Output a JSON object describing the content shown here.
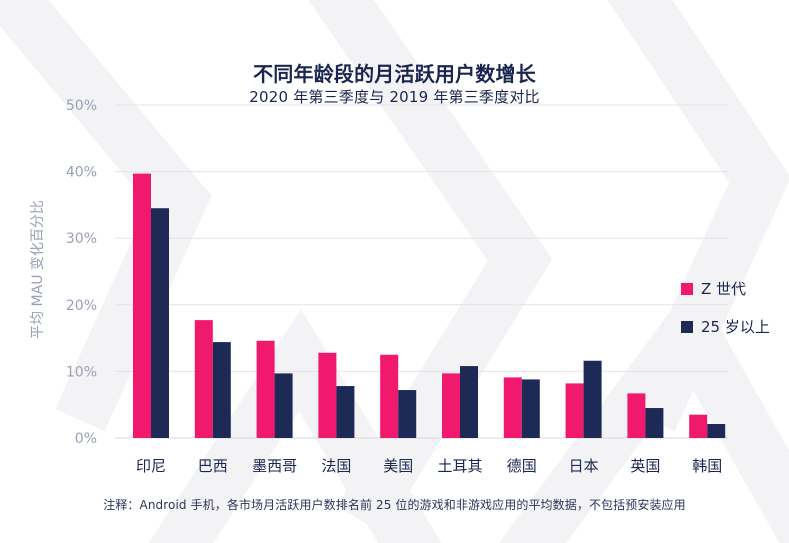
{
  "chart_data": {
    "type": "bar",
    "title": "不同年龄段的月活跃用户数增长",
    "subtitle": "2020 年第三季度与 2019 年第三季度对比",
    "ylabel": "平均 MAU 变化百分比",
    "ylim": [
      0,
      50
    ],
    "y_ticks": [
      {
        "value": 0,
        "label": "0%"
      },
      {
        "value": 10,
        "label": "10%"
      },
      {
        "value": 20,
        "label": "20%"
      },
      {
        "value": 30,
        "label": "30%"
      },
      {
        "value": 40,
        "label": "40%"
      },
      {
        "value": 50,
        "label": "50%"
      }
    ],
    "categories": [
      "印尼",
      "巴西",
      "墨西哥",
      "法国",
      "美国",
      "土耳其",
      "德国",
      "日本",
      "英国",
      "韩国"
    ],
    "series": [
      {
        "name": "Z 世代",
        "color": "#f0196e",
        "values": [
          39.7,
          17.7,
          14.6,
          12.8,
          12.5,
          9.7,
          9.1,
          8.2,
          6.7,
          3.5
        ]
      },
      {
        "name": "25 岁以上",
        "color": "#1d2a55",
        "values": [
          34.5,
          14.4,
          9.7,
          7.8,
          7.2,
          10.8,
          8.8,
          11.6,
          4.5,
          2.1
        ]
      }
    ],
    "grid": true,
    "legend": "right",
    "note": "注释：Android 手机，各市场月活跃用户数排名前 25 位的游戏和非游戏应用的平均数据，不包括预安装应用"
  }
}
